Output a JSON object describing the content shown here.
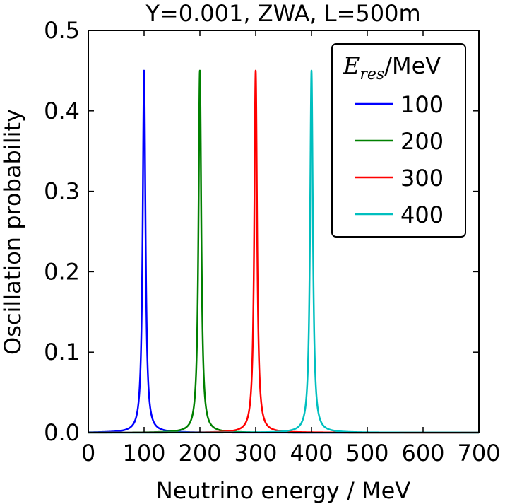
{
  "chart_data": {
    "type": "line",
    "title": "Y=0.001, ZWA, L=500m",
    "xlabel": "Neutrino energy / MeV",
    "ylabel": "Oscillation probability",
    "xlim": [
      0,
      700
    ],
    "ylim": [
      0,
      0.5
    ],
    "xticks": [
      "0",
      "100",
      "200",
      "300",
      "400",
      "500",
      "600",
      "700"
    ],
    "yticks": [
      "0.0",
      "0.1",
      "0.2",
      "0.3",
      "0.4",
      "0.5"
    ],
    "legend": {
      "title_main": "E",
      "title_sub": "res",
      "title_unit": "/MeV",
      "placement": "top-right"
    },
    "peak_height": 0.45,
    "series": [
      {
        "name": "100",
        "resonance": 100,
        "color": "#0000ff"
      },
      {
        "name": "200",
        "resonance": 200,
        "color": "#008000"
      },
      {
        "name": "300",
        "resonance": 300,
        "color": "#ff0000"
      },
      {
        "name": "400",
        "resonance": 400,
        "color": "#00bfbf"
      }
    ]
  }
}
